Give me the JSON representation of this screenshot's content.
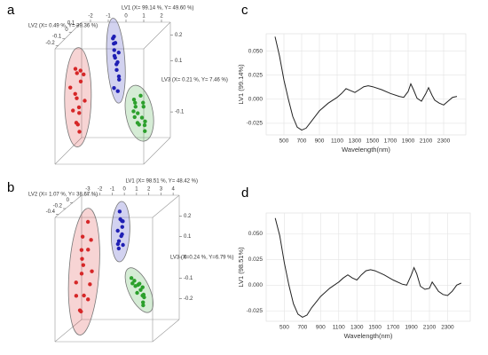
{
  "chart_data": [
    {
      "type": "scatter3d",
      "panel": "a",
      "xlabel": "LV1 (X= 99.14 %, Y= 49.60 %)",
      "ylabel": "LV2 (X= 0.49 %, Y= 39.36 %)",
      "zlabel": "LV3 (X= 0.21 %, Y= 7.46 %)",
      "xlim": [
        -2.5,
        2.5
      ],
      "ylim": [
        -0.25,
        0.15
      ],
      "zlim": [
        -0.2,
        0.25
      ],
      "xticks": [
        -2,
        -1,
        0,
        1,
        2
      ],
      "yticks": [
        -0.2,
        -0.1,
        0,
        0.1
      ],
      "zticks": [
        -0.1,
        0.1,
        0.2
      ],
      "series": [
        {
          "color": "#d62728",
          "x": [
            -2.1,
            -2.0,
            -2.2,
            -1.9,
            -2.0,
            -2.1,
            -1.8,
            -2.2,
            -2.0,
            -1.9,
            -2.1,
            -2.0,
            -1.8,
            -2.2,
            -1.9
          ],
          "y": [
            -0.05,
            0.0,
            -0.1,
            0.02,
            -0.08,
            -0.03,
            0.01,
            -0.06,
            -0.02,
            -0.09,
            0.03,
            -0.04,
            -0.07,
            0.0,
            -0.05
          ],
          "z": [
            0.12,
            0.1,
            0.06,
            0.08,
            0.03,
            0.0,
            -0.02,
            -0.04,
            -0.06,
            -0.08,
            0.05,
            -0.1,
            -0.12,
            0.09,
            -0.03
          ]
        },
        {
          "color": "#1f1fb4",
          "x": [
            -0.3,
            -0.2,
            -0.1,
            0.0,
            -0.4,
            0.1,
            -0.2,
            0.0,
            -0.1,
            0.2,
            -0.3,
            0.1,
            0.0,
            -0.2,
            0.1
          ],
          "y": [
            0.05,
            0.02,
            0.0,
            0.04,
            0.06,
            -0.02,
            0.03,
            0.01,
            0.05,
            -0.01,
            0.07,
            0.02,
            -0.03,
            0.04,
            0.0
          ],
          "z": [
            0.22,
            0.2,
            0.18,
            0.16,
            0.21,
            0.13,
            0.15,
            0.1,
            0.12,
            0.08,
            0.19,
            0.06,
            0.04,
            0.14,
            0.02
          ]
        },
        {
          "color": "#2ca02c",
          "x": [
            1.2,
            1.4,
            1.5,
            1.6,
            1.3,
            1.7,
            1.8,
            1.5,
            1.6,
            1.9,
            1.4,
            1.7,
            1.8,
            2.0,
            1.6
          ],
          "y": [
            -0.05,
            -0.08,
            -0.03,
            -0.1,
            -0.06,
            -0.04,
            -0.09,
            -0.12,
            -0.02,
            -0.07,
            -0.11,
            -0.13,
            -0.05,
            -0.1,
            -0.08
          ],
          "z": [
            0.0,
            -0.02,
            0.01,
            -0.04,
            -0.01,
            -0.03,
            -0.06,
            -0.05,
            -0.02,
            -0.08,
            -0.03,
            -0.07,
            -0.1,
            -0.11,
            -0.09
          ]
        }
      ]
    },
    {
      "type": "scatter3d",
      "panel": "b",
      "xlabel": "LV1 (X= 98.51 %, Y= 48.42 %)",
      "ylabel": "LV2 (X= 1.07 %, Y= 38.67 %)",
      "zlabel": "LV3 (X=0.24 %, Y=6.79 %)",
      "xlim": [
        -3.5,
        4.5
      ],
      "ylim": [
        -0.5,
        0.25
      ],
      "zlim": [
        -0.3,
        0.3
      ],
      "xticks": [
        -3,
        -2,
        -1,
        0,
        1,
        2,
        3,
        4
      ],
      "yticks": [
        -0.4,
        -0.2,
        0
      ],
      "zticks": [
        -0.2,
        -0.1,
        0,
        0.1,
        0.2
      ],
      "series": [
        {
          "color": "#d62728",
          "x": [
            -2.4,
            -2.2,
            -2.0,
            -2.3,
            -1.9,
            -2.1,
            -2.5,
            -1.8,
            -2.2,
            -2.0,
            -2.4,
            -1.9,
            -2.1,
            -2.3,
            -1.7,
            -2.0
          ],
          "y": [
            -0.1,
            -0.2,
            0.0,
            -0.15,
            -0.3,
            -0.05,
            -0.25,
            -0.1,
            -0.35,
            -0.2,
            0.05,
            -0.12,
            -0.28,
            -0.18,
            -0.08,
            -0.22
          ],
          "z": [
            0.15,
            0.1,
            0.12,
            0.05,
            0.0,
            0.08,
            -0.05,
            -0.08,
            -0.1,
            -0.12,
            0.2,
            -0.15,
            -0.18,
            -0.2,
            -0.02,
            0.03
          ]
        },
        {
          "color": "#1f1fb4",
          "x": [
            0.2,
            0.4,
            0.3,
            0.5,
            0.1,
            0.6,
            0.3,
            0.4,
            0.2,
            0.5,
            0.3,
            0.4
          ],
          "y": [
            0.05,
            0.0,
            0.08,
            0.02,
            0.03,
            -0.02,
            0.06,
            -0.04,
            0.0,
            0.04,
            -0.01,
            0.07
          ],
          "z": [
            0.25,
            0.22,
            0.2,
            0.18,
            0.16,
            0.15,
            0.13,
            0.12,
            0.1,
            0.09,
            0.08,
            0.2
          ]
        },
        {
          "color": "#2ca02c",
          "x": [
            1.6,
            1.9,
            2.2,
            2.5,
            2.8,
            2.0,
            2.3,
            2.6,
            1.8,
            2.4,
            2.9,
            2.1,
            2.7,
            3.0
          ],
          "y": [
            -0.1,
            -0.12,
            -0.08,
            -0.15,
            -0.2,
            -0.05,
            -0.18,
            -0.1,
            -0.14,
            -0.06,
            -0.22,
            -0.16,
            -0.12,
            -0.25
          ],
          "z": [
            -0.05,
            -0.06,
            -0.08,
            -0.1,
            -0.12,
            -0.09,
            -0.11,
            -0.13,
            -0.07,
            -0.1,
            -0.15,
            -0.08,
            -0.14,
            -0.16
          ]
        }
      ]
    },
    {
      "type": "line",
      "panel": "c",
      "ylabel": "LV1 (99.14%)",
      "xlabel": "Wavelength(nm)",
      "color": "#222222",
      "grid": true,
      "xlim": [
        300,
        2550
      ],
      "ylim": [
        -0.037,
        0.068
      ],
      "xticks": [
        500,
        700,
        900,
        1100,
        1300,
        1500,
        1700,
        1900,
        2100,
        2300
      ],
      "yticks": [
        -0.025,
        {
          "value": 0,
          "label": "0.000"
        },
        0.025,
        {
          "value": 0.05,
          "label": "0.050"
        }
      ],
      "x": [
        400,
        450,
        500,
        550,
        600,
        650,
        700,
        750,
        800,
        900,
        1000,
        1100,
        1150,
        1200,
        1250,
        1300,
        1350,
        1400,
        1450,
        1500,
        1600,
        1700,
        1800,
        1850,
        1900,
        1930,
        1960,
        2000,
        2050,
        2100,
        2130,
        2170,
        2200,
        2250,
        2300,
        2350,
        2400,
        2450
      ],
      "values": [
        0.065,
        0.045,
        0.02,
        0.0,
        -0.018,
        -0.029,
        -0.032,
        -0.03,
        -0.024,
        -0.012,
        -0.004,
        0.002,
        0.006,
        0.011,
        0.009,
        0.007,
        0.01,
        0.013,
        0.014,
        0.013,
        0.01,
        0.006,
        0.003,
        0.002,
        0.008,
        0.016,
        0.01,
        0.001,
        -0.002,
        0.006,
        0.012,
        0.004,
        -0.001,
        -0.004,
        -0.006,
        -0.002,
        0.002,
        0.003
      ]
    },
    {
      "type": "line",
      "panel": "d",
      "ylabel": "LV1 (98.51%)",
      "xlabel": "Wavelength(nm)",
      "color": "#222222",
      "grid": true,
      "xlim": [
        300,
        2550
      ],
      "ylim": [
        -0.035,
        0.07
      ],
      "xticks": [
        500,
        700,
        900,
        1100,
        1300,
        1500,
        1700,
        1900,
        2100,
        2300
      ],
      "yticks": [
        -0.025,
        {
          "value": 0,
          "label": "0.000"
        },
        0.025,
        {
          "value": 0.05,
          "label": "0.050"
        }
      ],
      "x": [
        400,
        450,
        500,
        550,
        600,
        650,
        700,
        750,
        800,
        900,
        1000,
        1100,
        1150,
        1200,
        1250,
        1300,
        1350,
        1400,
        1450,
        1500,
        1600,
        1700,
        1800,
        1850,
        1900,
        1930,
        1960,
        2000,
        2050,
        2100,
        2130,
        2170,
        2200,
        2250,
        2300,
        2350,
        2400,
        2450
      ],
      "values": [
        0.065,
        0.048,
        0.022,
        0.0,
        -0.018,
        -0.028,
        -0.031,
        -0.029,
        -0.022,
        -0.011,
        -0.003,
        0.003,
        0.007,
        0.01,
        0.007,
        0.005,
        0.01,
        0.014,
        0.015,
        0.014,
        0.01,
        0.005,
        0.001,
        0.0,
        0.01,
        0.017,
        0.011,
        -0.001,
        -0.004,
        -0.003,
        0.003,
        -0.002,
        -0.006,
        -0.009,
        -0.01,
        -0.006,
        0.0,
        0.002
      ]
    }
  ]
}
